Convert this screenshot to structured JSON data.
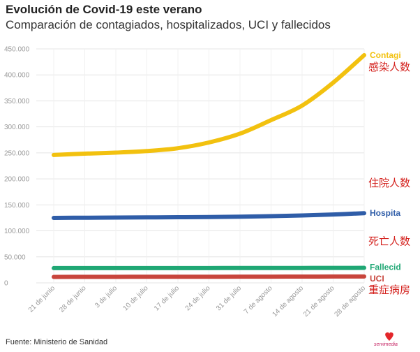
{
  "header": {
    "title": "Evolución de Covid-19 este verano",
    "subtitle": "Comparación de contagiados, hospitalizados, UCI y fallecidos"
  },
  "chart_data": {
    "type": "line",
    "title": "Evolución de Covid-19 este verano",
    "subtitle": "Comparación de contagiados, hospitalizados, UCI y fallecidos",
    "xlabel": "",
    "ylabel": "",
    "ylim": [
      0,
      450000
    ],
    "y_ticks": [
      "0",
      "50.000",
      "100.000",
      "150.000",
      "200.000",
      "250.000",
      "300.000",
      "350.000",
      "400.000",
      "450.000"
    ],
    "y_tick_values": [
      0,
      50000,
      100000,
      150000,
      200000,
      250000,
      300000,
      350000,
      400000,
      450000
    ],
    "categories": [
      "21 de junio",
      "28 de junio",
      "3 de julio",
      "10 de julio",
      "17 de julio",
      "24 de julio",
      "31 de julio",
      "7 de agosto",
      "14 de agosto",
      "21 de agosto",
      "28 de agosto"
    ],
    "grid": true,
    "series": [
      {
        "name": "Contagi",
        "annotation": "感染人数",
        "color": "#f2c10f",
        "values": [
          246000,
          248500,
          250500,
          253500,
          259000,
          270000,
          287000,
          313000,
          341000,
          385000,
          438000
        ]
      },
      {
        "name": "Hospita",
        "annotation": "住院人数",
        "color": "#2f5da8",
        "values": [
          125000,
          125300,
          125600,
          125900,
          126200,
          126600,
          127300,
          128300,
          129700,
          131500,
          134000
        ]
      },
      {
        "name": "Fallecid",
        "annotation": "死亡人数",
        "color": "#1fa774",
        "values": [
          28300,
          28350,
          28400,
          28400,
          28450,
          28450,
          28500,
          28550,
          28600,
          28700,
          28800
        ]
      },
      {
        "name": "UCI",
        "annotation": "重症病房",
        "color": "#c8453c",
        "values": [
          11500,
          11600,
          11650,
          11700,
          11750,
          11800,
          11900,
          12000,
          12100,
          12200,
          12300
        ]
      }
    ]
  },
  "footer": {
    "source": "Fuente: Ministerio de Sanidad",
    "logo_text": "servimedia"
  }
}
